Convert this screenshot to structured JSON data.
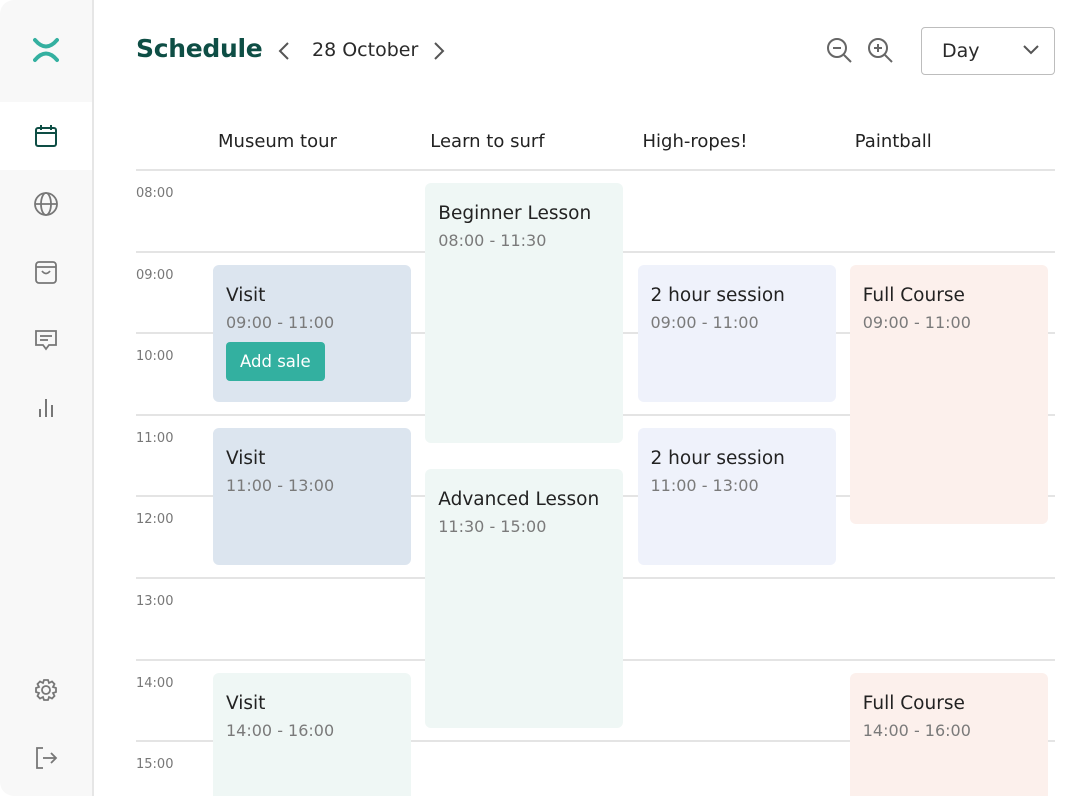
{
  "sidebar": {
    "items": [
      {
        "icon": "logo-icon"
      },
      {
        "icon": "calendar-icon",
        "active": true
      },
      {
        "icon": "globe-icon"
      },
      {
        "icon": "shopping-bag-icon"
      },
      {
        "icon": "message-icon"
      },
      {
        "icon": "bar-chart-icon"
      },
      {
        "icon": "settings-icon"
      },
      {
        "icon": "logout-icon"
      }
    ]
  },
  "header": {
    "title": "Schedule",
    "date": "28 October",
    "view_select": "Day"
  },
  "colors": {
    "brand": "#34b0a0",
    "title": "#0e4e45"
  },
  "columns": [
    "Museum tour",
    "Learn to surf",
    "High-ropes!",
    "Paintball"
  ],
  "hours": [
    "08:00",
    "09:00",
    "10:00",
    "11:00",
    "12:00",
    "13:00",
    "14:00",
    "15:00"
  ],
  "events": [
    {
      "column": 0,
      "title": "Visit",
      "time": "09:00 - 11:00",
      "color": "#dce5ef",
      "button": "Add sale"
    },
    {
      "column": 0,
      "title": "Visit",
      "time": "11:00 - 13:00",
      "color": "#dce5ef"
    },
    {
      "column": 0,
      "title": "Visit",
      "time": "14:00 - 16:00",
      "color": "#eff7f5"
    },
    {
      "column": 1,
      "title": "Beginner Lesson",
      "time": "08:00 - 11:30",
      "color": "#eff7f5"
    },
    {
      "column": 1,
      "title": "Advanced Lesson",
      "time": "11:30 - 15:00",
      "color": "#eff7f5"
    },
    {
      "column": 2,
      "title": "2 hour session",
      "time": "09:00 - 11:00",
      "color": "#eff2fb"
    },
    {
      "column": 2,
      "title": "2 hour session",
      "time": "11:00 - 13:00",
      "color": "#eff2fb"
    },
    {
      "column": 3,
      "title": "Full Course",
      "time": "09:00 - 11:00",
      "color": "#fcf0ec"
    },
    {
      "column": 3,
      "title": "Full Course",
      "time": "14:00 - 16:00",
      "color": "#fcf0ec"
    }
  ]
}
